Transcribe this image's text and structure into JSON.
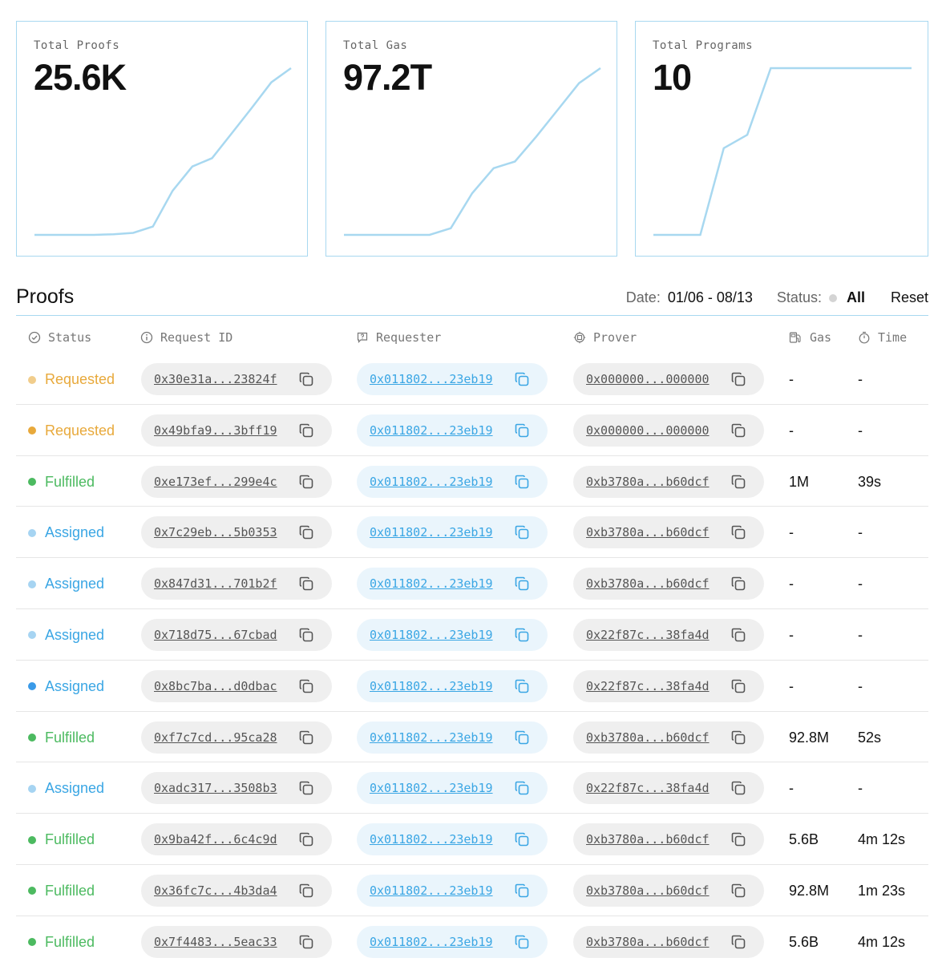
{
  "stats": [
    {
      "label": "Total Proofs",
      "value": "25.6K",
      "series": [
        0,
        0,
        0,
        0,
        0.004,
        0.012,
        0.05,
        0.265,
        0.41,
        0.46,
        0.61,
        0.76,
        0.915,
        1.0
      ]
    },
    {
      "label": "Total Gas",
      "value": "97.2T",
      "series": [
        0,
        0,
        0,
        0,
        0,
        0.04,
        0.25,
        0.4,
        0.44,
        0.59,
        0.75,
        0.91,
        1.0
      ]
    },
    {
      "label": "Total Programs",
      "value": "10",
      "series": [
        0,
        0,
        0,
        0.52,
        0.6,
        1.0,
        1.0,
        1.0,
        1.0,
        1.0,
        1.0,
        1.0
      ]
    }
  ],
  "proofs": {
    "title": "Proofs",
    "date_label": "Date:",
    "date_value": "01/06 - 08/13",
    "status_label": "Status:",
    "status_value": "All",
    "reset_label": "Reset"
  },
  "columns": {
    "status": "Status",
    "request_id": "Request ID",
    "requester": "Requester",
    "prover": "Prover",
    "gas": "Gas",
    "time": "Time"
  },
  "status_colors": {
    "Requested": "#e8a93b",
    "Fulfilled": "#4cba60",
    "Assigned": "#3aa6e4"
  },
  "rows": [
    {
      "status": "Requested",
      "dot": "#f1cd8c",
      "request_id": "0x30e31a...23824f",
      "requester": "0x011802...23eb19",
      "prover": "0x000000...000000",
      "gas": "-",
      "time": "-"
    },
    {
      "status": "Requested",
      "dot": "#e8a93b",
      "request_id": "0x49bfa9...3bff19",
      "requester": "0x011802...23eb19",
      "prover": "0x000000...000000",
      "gas": "-",
      "time": "-"
    },
    {
      "status": "Fulfilled",
      "dot": "#4cba60",
      "request_id": "0xe173ef...299e4c",
      "requester": "0x011802...23eb19",
      "prover": "0xb3780a...b60dcf",
      "gas": "1M",
      "time": "39s"
    },
    {
      "status": "Assigned",
      "dot": "#a6d4f2",
      "request_id": "0x7c29eb...5b0353",
      "requester": "0x011802...23eb19",
      "prover": "0xb3780a...b60dcf",
      "gas": "-",
      "time": "-"
    },
    {
      "status": "Assigned",
      "dot": "#a6d4f2",
      "request_id": "0x847d31...701b2f",
      "requester": "0x011802...23eb19",
      "prover": "0xb3780a...b60dcf",
      "gas": "-",
      "time": "-"
    },
    {
      "status": "Assigned",
      "dot": "#a6d4f2",
      "request_id": "0x718d75...67cbad",
      "requester": "0x011802...23eb19",
      "prover": "0x22f87c...38fa4d",
      "gas": "-",
      "time": "-"
    },
    {
      "status": "Assigned",
      "dot": "#3a9ae8",
      "request_id": "0x8bc7ba...d0dbac",
      "requester": "0x011802...23eb19",
      "prover": "0x22f87c...38fa4d",
      "gas": "-",
      "time": "-"
    },
    {
      "status": "Fulfilled",
      "dot": "#4cba60",
      "request_id": "0xf7c7cd...95ca28",
      "requester": "0x011802...23eb19",
      "prover": "0xb3780a...b60dcf",
      "gas": "92.8M",
      "time": "52s"
    },
    {
      "status": "Assigned",
      "dot": "#a6d4f2",
      "request_id": "0xadc317...3508b3",
      "requester": "0x011802...23eb19",
      "prover": "0x22f87c...38fa4d",
      "gas": "-",
      "time": "-"
    },
    {
      "status": "Fulfilled",
      "dot": "#4cba60",
      "request_id": "0x9ba42f...6c4c9d",
      "requester": "0x011802...23eb19",
      "prover": "0xb3780a...b60dcf",
      "gas": "5.6B",
      "time": "4m 12s"
    },
    {
      "status": "Fulfilled",
      "dot": "#4cba60",
      "request_id": "0x36fc7c...4b3da4",
      "requester": "0x011802...23eb19",
      "prover": "0xb3780a...b60dcf",
      "gas": "92.8M",
      "time": "1m 23s"
    },
    {
      "status": "Fulfilled",
      "dot": "#4cba60",
      "request_id": "0x7f4483...5eac33",
      "requester": "0x011802...23eb19",
      "prover": "0xb3780a...b60dcf",
      "gas": "5.6B",
      "time": "4m 12s"
    }
  ],
  "icons": {
    "status": "check-circle-icon",
    "request_id": "info-circle-icon",
    "requester": "question-box-icon",
    "prover": "cpu-icon",
    "gas": "gas-pump-icon",
    "time": "stopwatch-icon",
    "copy": "copy-icon"
  },
  "accent_color": "#a8d8f0"
}
